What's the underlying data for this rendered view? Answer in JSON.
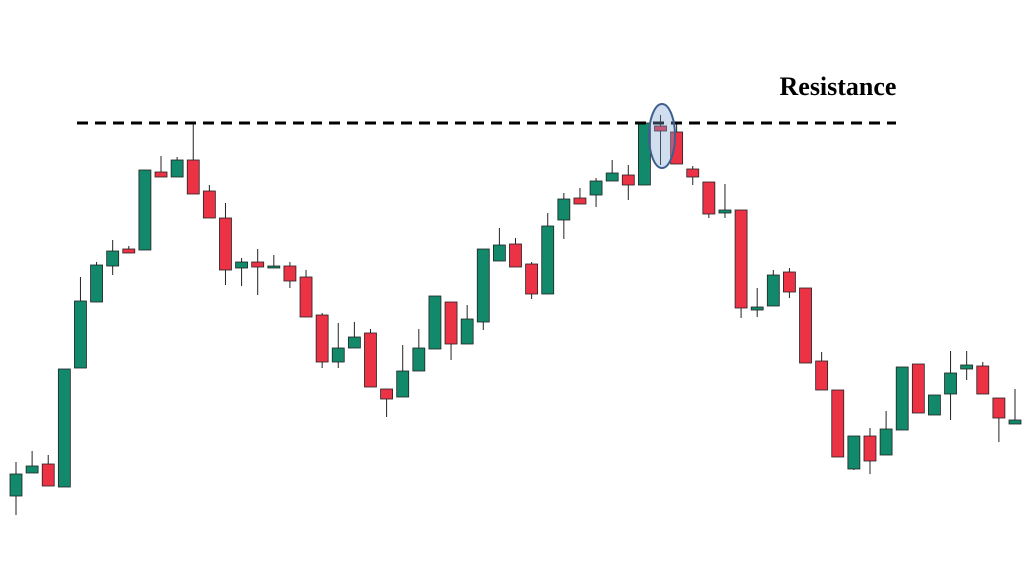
{
  "chart_data": {
    "type": "candlestick",
    "up_color": "#12896b",
    "down_color": "#ec3346",
    "ylim": [
      0,
      576
    ],
    "resistance": {
      "label": "Resistance",
      "value": 453
    },
    "open": [
      80,
      103,
      112,
      89,
      208,
      274,
      310,
      327,
      326,
      404,
      399,
      416,
      385,
      358,
      308,
      314,
      308,
      310,
      299,
      261,
      214,
      228,
      243,
      187,
      179,
      205,
      227,
      274,
      232,
      254,
      315,
      332,
      312,
      282,
      356,
      378,
      381,
      395,
      401,
      391,
      450,
      444,
      407,
      394,
      363,
      366,
      266,
      270,
      304,
      288,
      215,
      186,
      107,
      140,
      121,
      146,
      212,
      161,
      182,
      207,
      210,
      178,
      152
    ],
    "high": [
      114,
      125,
      121,
      207,
      299,
      314,
      336,
      330,
      406,
      420,
      419,
      453,
      391,
      373,
      318,
      327,
      321,
      314,
      306,
      263,
      253,
      254,
      247,
      187,
      231,
      247,
      280,
      274,
      271,
      327,
      348,
      338,
      314,
      363,
      383,
      388,
      398,
      416,
      411,
      453,
      461,
      453,
      410,
      394,
      392,
      366,
      288,
      306,
      308,
      288,
      224,
      186,
      140,
      148,
      165,
      209,
      212,
      181,
      225,
      225,
      214,
      178,
      187
    ],
    "low": [
      61,
      103,
      90,
      89,
      208,
      274,
      301,
      323,
      326,
      399,
      399,
      382,
      358,
      291,
      290,
      281,
      308,
      288,
      259,
      208,
      208,
      228,
      189,
      159,
      179,
      205,
      227,
      216,
      232,
      246,
      315,
      309,
      277,
      282,
      337,
      372,
      369,
      395,
      376,
      391,
      411,
      412,
      391,
      358,
      358,
      258,
      259,
      270,
      278,
      213,
      186,
      119,
      106,
      102,
      121,
      146,
      163,
      161,
      156,
      196,
      182,
      134,
      152
    ],
    "close": [
      102,
      110,
      90,
      207,
      275,
      311,
      325,
      323,
      406,
      399,
      416,
      382,
      358,
      306,
      314,
      309,
      310,
      295,
      259,
      214,
      228,
      239,
      189,
      177,
      205,
      228,
      280,
      232,
      257,
      327,
      331,
      309,
      282,
      350,
      377,
      372,
      395,
      403,
      391,
      453,
      445,
      412,
      399,
      362,
      366,
      268,
      269,
      301,
      284,
      213,
      186,
      119,
      140,
      115,
      147,
      209,
      163,
      181,
      203,
      211,
      182,
      158,
      156
    ]
  }
}
